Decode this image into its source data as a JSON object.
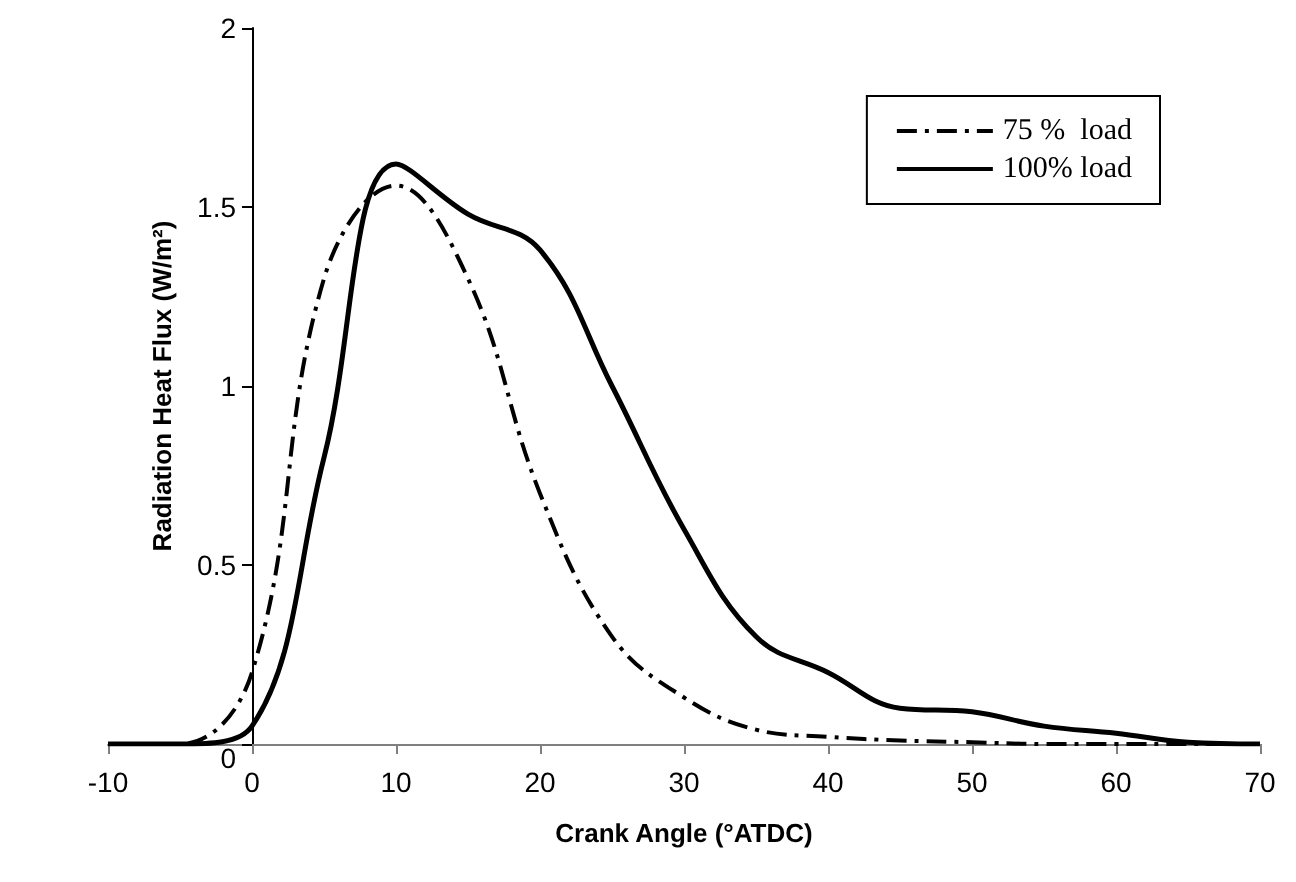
{
  "chart_data": {
    "type": "line",
    "xlabel": "Crank Angle (°ATDC)",
    "ylabel": "Radiation Heat Flux (W/m²)",
    "xlim": [
      -10,
      70
    ],
    "xticks": [
      -10,
      0,
      10,
      20,
      30,
      40,
      50,
      60,
      70
    ],
    "ylim": [
      0,
      2
    ],
    "yticks": [
      0,
      0.5,
      1,
      1.5,
      2
    ],
    "x": [
      -10,
      -5,
      0,
      5,
      10,
      15,
      20,
      25,
      30,
      35,
      40,
      45,
      50,
      55,
      60,
      65,
      70
    ],
    "series": [
      {
        "name": "75 %  load",
        "color": "#000000",
        "line_style": "dashed",
        "values": [
          0,
          0,
          0.2,
          1.3,
          1.56,
          1.3,
          0.7,
          0.3,
          0.13,
          0.04,
          0.02,
          0.01,
          0.005,
          0,
          0,
          0,
          0
        ]
      },
      {
        "name": "100% load",
        "color": "#000000",
        "line_style": "solid",
        "values": [
          0,
          0,
          0.05,
          0.8,
          1.62,
          1.48,
          1.38,
          1.0,
          0.6,
          0.3,
          0.2,
          0.1,
          0.09,
          0.05,
          0.03,
          0.005,
          0
        ]
      }
    ],
    "grid": false,
    "legend": "top right",
    "marker": "none"
  }
}
